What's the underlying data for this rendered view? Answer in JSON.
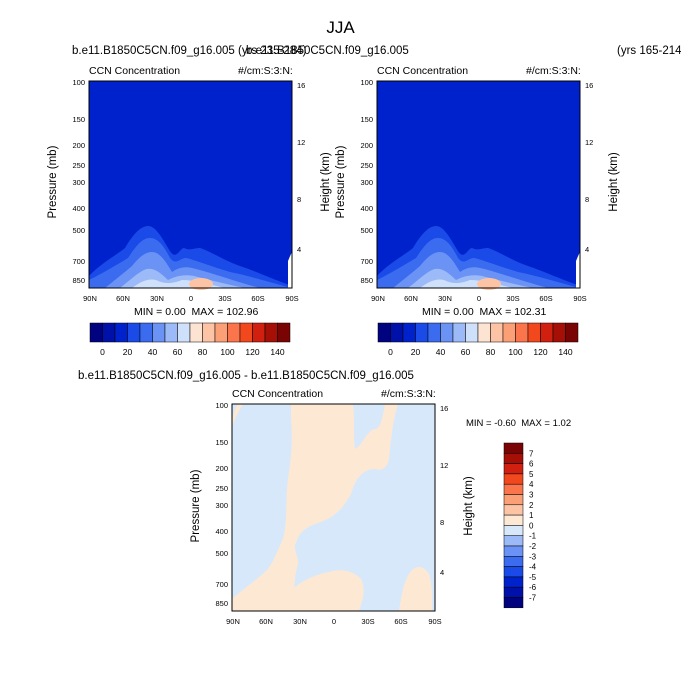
{
  "page": {
    "title": "JJA"
  },
  "colors": {
    "pos_levels": [
      "#010280",
      "#0011aa",
      "#0022cc",
      "#1a4ae8",
      "#3b6cf0",
      "#6a93f5",
      "#9cbaf7",
      "#cfe0fa",
      "#fde4d2",
      "#fcc4a5",
      "#fb9f77",
      "#fa754b",
      "#f2481d",
      "#d12010",
      "#a50f05",
      "#7a0404"
    ],
    "diff_levels": [
      "#010280",
      "#0011aa",
      "#0022cc",
      "#1a4ae8",
      "#3b6cf0",
      "#6a93f5",
      "#9cbaf7",
      "#d7e8fb",
      "#fde8d4",
      "#fcc4a5",
      "#fb9f77",
      "#fa754b",
      "#f2481d",
      "#d12010",
      "#a50f05",
      "#7a0404"
    ]
  },
  "panels": [
    {
      "case_title": "b.e11.B1850C5CN.f09_g16.005 (yrs 235-284)",
      "variable": "CCN Concentration",
      "units": "#/cm:S:3:N:",
      "min_label": "MIN = ",
      "min_value": "0.00",
      "max_label": "MAX = ",
      "max_value": "102.96",
      "colorbar_labels": [
        "0",
        "20",
        "40",
        "60",
        "80",
        "100",
        "120",
        "140"
      ]
    },
    {
      "case_title": "b.e11.B1850C5CN.f09_g16.005",
      "case_years": "(yrs 165-214)",
      "variable": "CCN Concentration",
      "units": "#/cm:S:3:N:",
      "min_label": "MIN = ",
      "min_value": "0.00",
      "max_label": "MAX = ",
      "max_value": "102.31",
      "colorbar_labels": [
        "0",
        "20",
        "40",
        "60",
        "80",
        "100",
        "120",
        "140"
      ]
    },
    {
      "case_title": "b.e11.B1850C5CN.f09_g16.005 - b.e11.B1850C5CN.f09_g16.005",
      "variable": "CCN Concentration",
      "units": "#/cm:S:3:N:",
      "min_label": "MIN = ",
      "min_value": "-0.60",
      "max_label": "MAX = ",
      "max_value": "1.02",
      "colorbar_labels": [
        "7",
        "6",
        "5",
        "4",
        "3",
        "2",
        "1",
        "0",
        "-1",
        "-2",
        "-3",
        "-4",
        "-5",
        "-6",
        "-7"
      ]
    }
  ],
  "chart_data": [
    {
      "type": "heatmap",
      "title": "CCN Concentration",
      "subtitle": "b.e11.B1850C5CN.f09_g16.005 (yrs 235-284)",
      "xlabel": "",
      "ylabel": "Pressure (mb)",
      "ylabel_right": "Height (km)",
      "x_ticks": [
        "90N",
        "60N",
        "30N",
        "0",
        "30S",
        "60S",
        "90S"
      ],
      "y_ticks": [
        "100",
        "150",
        "200",
        "250",
        "300",
        "400",
        "500",
        "700",
        "850"
      ],
      "y_ticks_right": [
        "16",
        "12",
        "8",
        "4"
      ],
      "levels": [
        0,
        10,
        20,
        30,
        40,
        50,
        60,
        70,
        80,
        90,
        100,
        110,
        120,
        130,
        140
      ],
      "min": 0.0,
      "max": 102.96
    },
    {
      "type": "heatmap",
      "title": "CCN Concentration",
      "subtitle": "b.e11.B1850C5CN.f09_g16.005 (yrs 165-214)",
      "xlabel": "",
      "ylabel": "Pressure (mb)",
      "ylabel_right": "Height (km)",
      "x_ticks": [
        "90N",
        "60N",
        "30N",
        "0",
        "30S",
        "60S",
        "90S"
      ],
      "y_ticks": [
        "100",
        "150",
        "200",
        "250",
        "300",
        "400",
        "500",
        "700",
        "850"
      ],
      "y_ticks_right": [
        "16",
        "12",
        "8",
        "4"
      ],
      "levels": [
        0,
        10,
        20,
        30,
        40,
        50,
        60,
        70,
        80,
        90,
        100,
        110,
        120,
        130,
        140
      ],
      "min": 0.0,
      "max": 102.31
    },
    {
      "type": "heatmap",
      "title": "CCN Concentration",
      "subtitle": "b.e11.B1850C5CN.f09_g16.005 - b.e11.B1850C5CN.f09_g16.005",
      "xlabel": "",
      "ylabel": "Pressure (mb)",
      "ylabel_right": "Height (km)",
      "x_ticks": [
        "90N",
        "60N",
        "30N",
        "0",
        "30S",
        "60S",
        "90S"
      ],
      "y_ticks": [
        "100",
        "150",
        "200",
        "250",
        "300",
        "400",
        "500",
        "700",
        "850"
      ],
      "y_ticks_right": [
        "16",
        "12",
        "8",
        "4"
      ],
      "levels": [
        -7,
        -6,
        -5,
        -4,
        -3,
        -2,
        -1,
        0,
        1,
        2,
        3,
        4,
        5,
        6,
        7
      ],
      "min": -0.6,
      "max": 1.02
    }
  ]
}
